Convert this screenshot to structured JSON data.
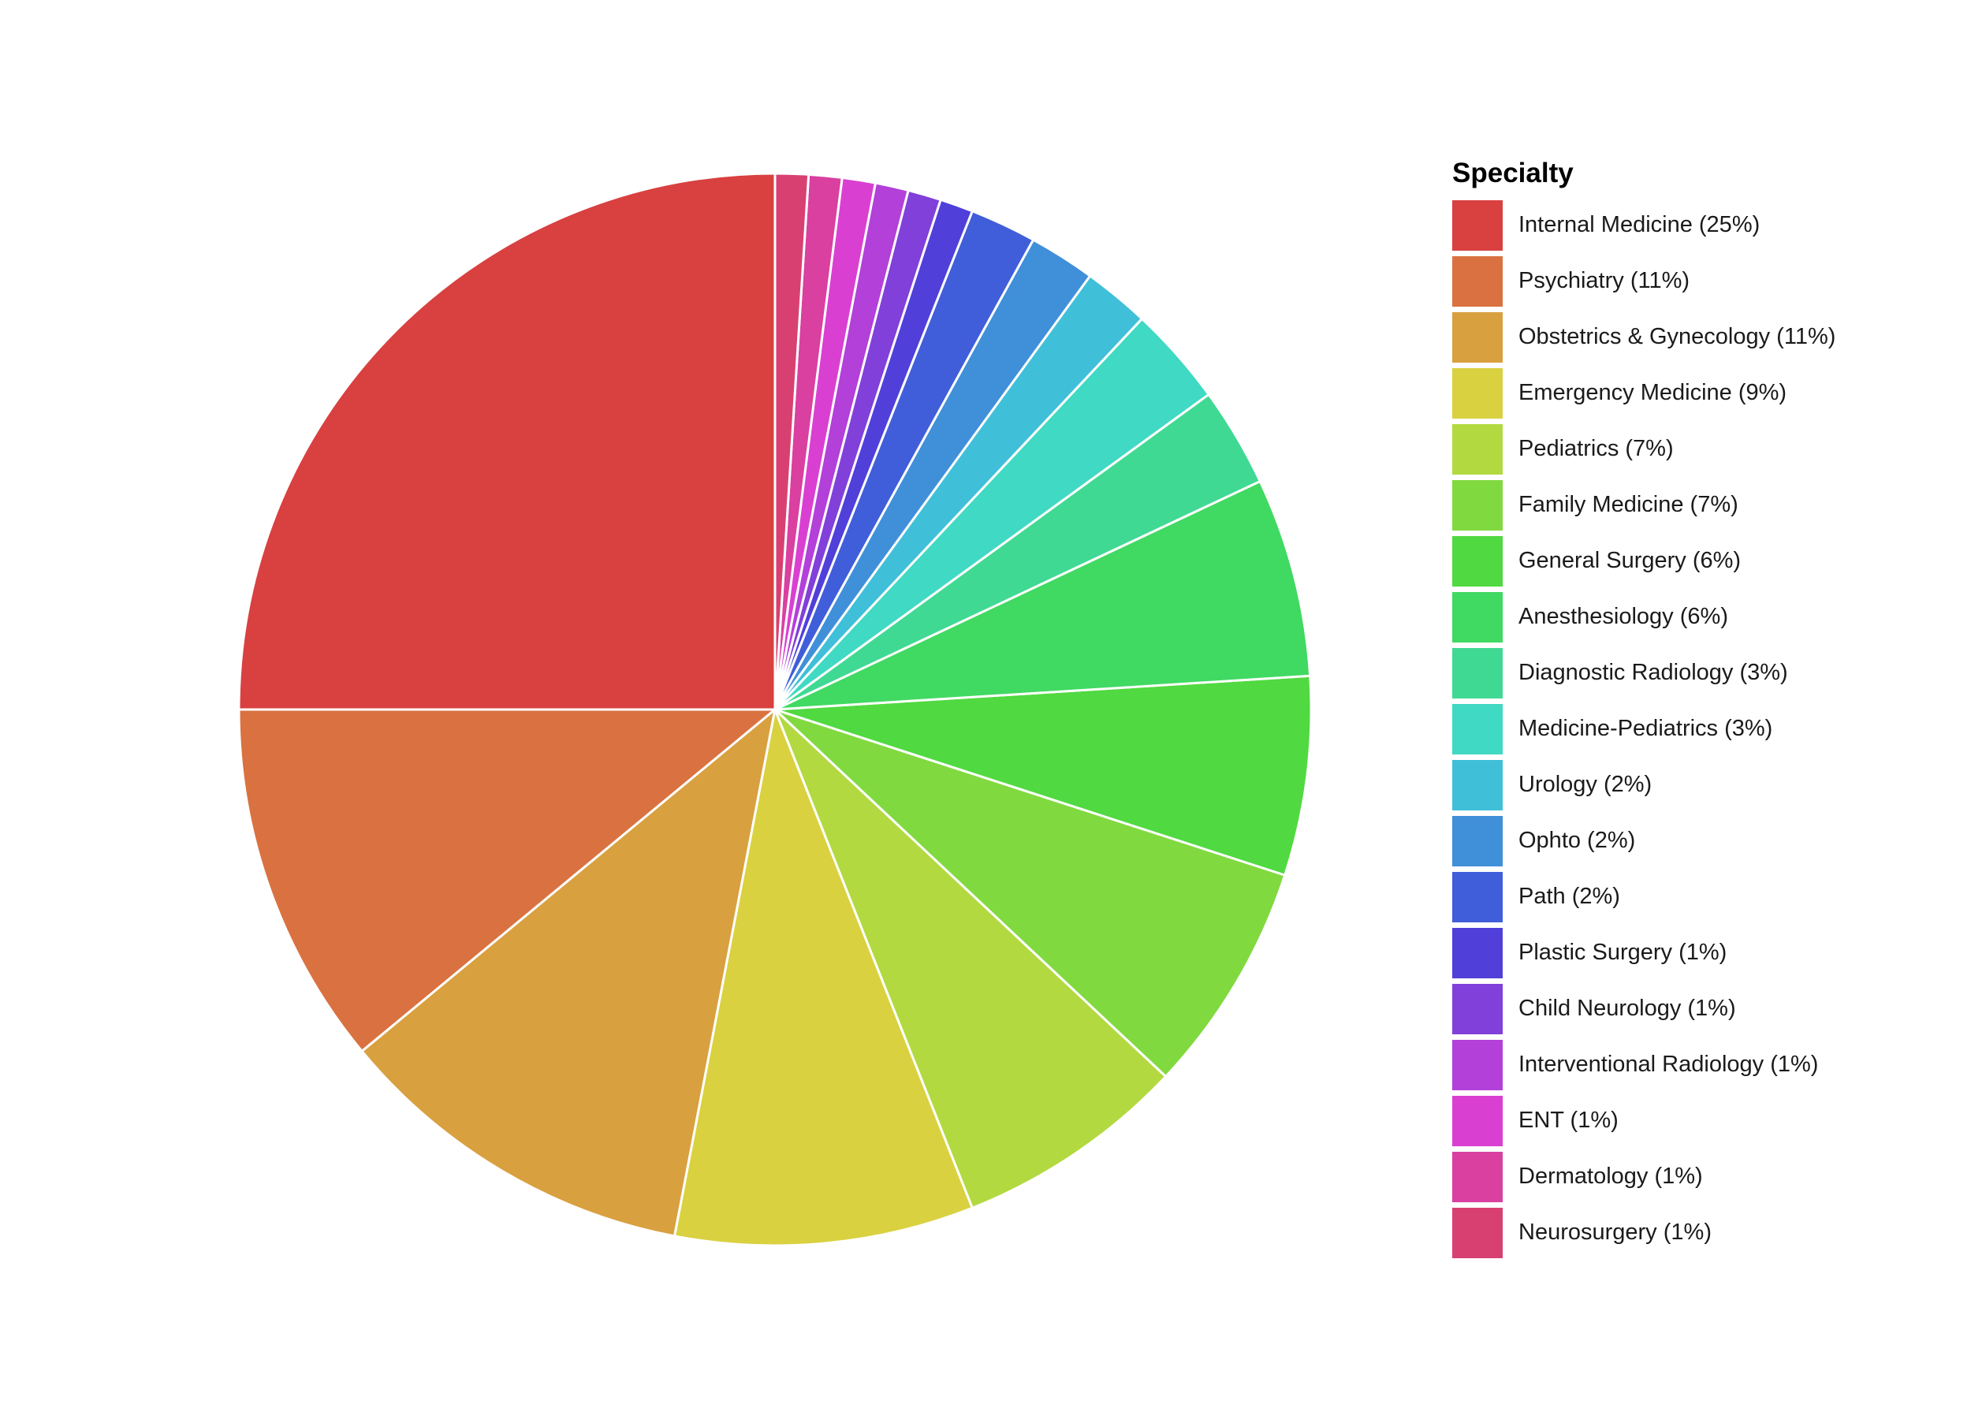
{
  "chart_data": {
    "type": "pie",
    "title": "",
    "start": "top",
    "direction": "clockwise-from-top-in-reverse-legend-order",
    "legend": {
      "title": "Specialty",
      "placement": "right"
    },
    "slices": [
      {
        "label": "Internal Medicine (25%)",
        "category": "Internal Medicine",
        "value": 25,
        "color": "#D94040"
      },
      {
        "label": "Psychiatry (11%)",
        "category": "Psychiatry",
        "value": 11,
        "color": "#D97240"
      },
      {
        "label": "Obstetrics & Gynecology (11%)",
        "category": "Obstetrics & Gynecology",
        "value": 11,
        "color": "#D9A040"
      },
      {
        "label": "Emergency Medicine (9%)",
        "category": "Emergency Medicine",
        "value": 9,
        "color": "#D9D140"
      },
      {
        "label": "Pediatrics (7%)",
        "category": "Pediatrics",
        "value": 7,
        "color": "#B2D940"
      },
      {
        "label": "Family Medicine (7%)",
        "category": "Family Medicine",
        "value": 7,
        "color": "#81D940"
      },
      {
        "label": "General Surgery (6%)",
        "category": "General Surgery",
        "value": 6,
        "color": "#50D940"
      },
      {
        "label": "Anesthesiology (6%)",
        "category": "Anesthesiology",
        "value": 6,
        "color": "#40D962"
      },
      {
        "label": "Diagnostic Radiology (3%)",
        "category": "Diagnostic Radiology",
        "value": 3,
        "color": "#40D993"
      },
      {
        "label": "Medicine-Pediatrics (3%)",
        "category": "Medicine-Pediatrics",
        "value": 3,
        "color": "#40D9C3"
      },
      {
        "label": "Urology (2%)",
        "category": "Urology",
        "value": 2,
        "color": "#40BFD9"
      },
      {
        "label": "Ophto (2%)",
        "category": "Ophto",
        "value": 2,
        "color": "#408FD9"
      },
      {
        "label": "Path (2%)",
        "category": "Path",
        "value": 2,
        "color": "#405ED9"
      },
      {
        "label": "Plastic Surgery (1%)",
        "category": "Plastic Surgery",
        "value": 1,
        "color": "#5040D9"
      },
      {
        "label": "Child Neurology (1%)",
        "category": "Child Neurology",
        "value": 1,
        "color": "#8140D9"
      },
      {
        "label": "Interventional Radiology (1%)",
        "category": "Interventional Radiology",
        "value": 1,
        "color": "#B240D9"
      },
      {
        "label": "ENT (1%)",
        "category": "ENT",
        "value": 1,
        "color": "#D940D1"
      },
      {
        "label": "Dermatology (1%)",
        "category": "Dermatology",
        "value": 1,
        "color": "#D940A0"
      },
      {
        "label": "Neurosurgery (1%)",
        "category": "Neurosurgery",
        "value": 1,
        "color": "#D94072"
      }
    ]
  }
}
